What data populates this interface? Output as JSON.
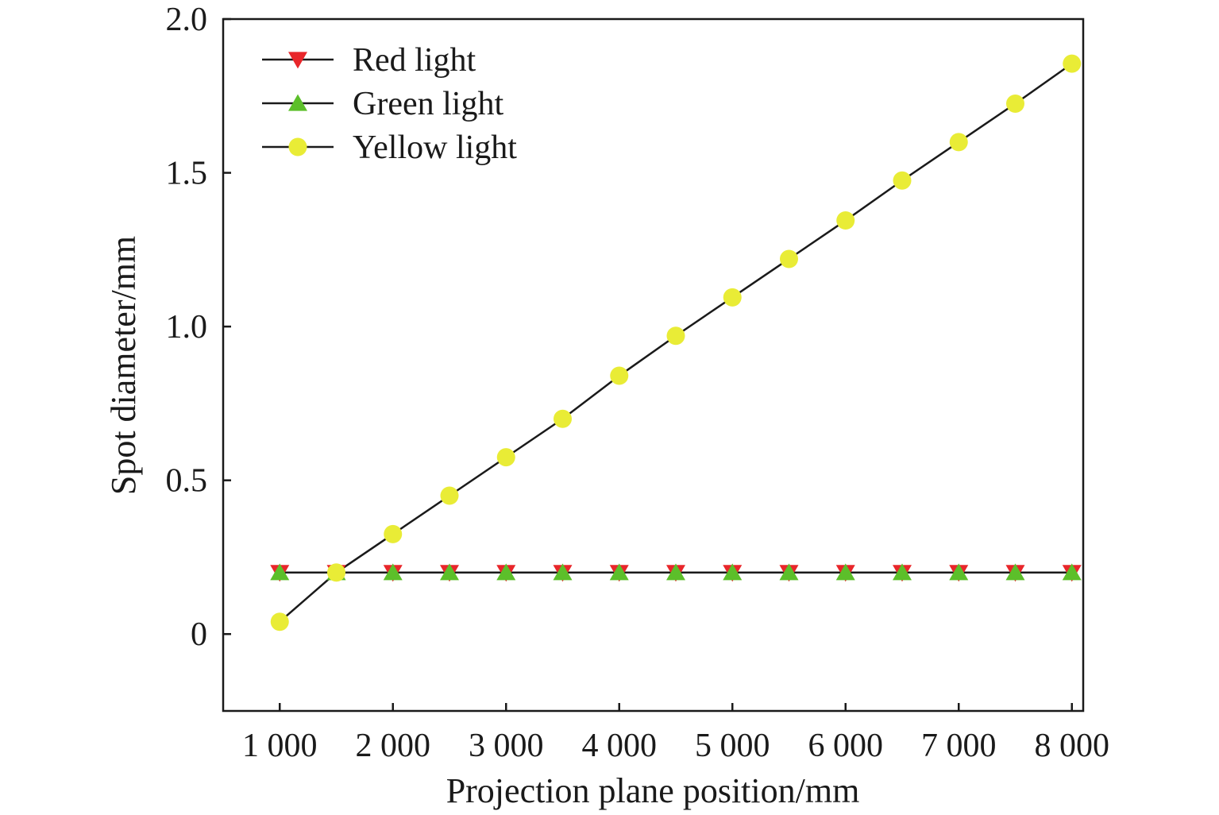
{
  "chart_data": {
    "type": "line",
    "xlabel": "Projection plane position/mm",
    "ylabel": "Spot diameter/mm",
    "xlim": [
      500,
      8100
    ],
    "ylim": [
      -0.25,
      2.0
    ],
    "x_ticks": [
      1000,
      2000,
      3000,
      4000,
      5000,
      6000,
      7000,
      8000
    ],
    "x_tick_labels": [
      "1 000",
      "2 000",
      "3 000",
      "4 000",
      "5 000",
      "6 000",
      "7 000",
      "8 000"
    ],
    "y_ticks": [
      0,
      0.5,
      1.0,
      1.5,
      2.0
    ],
    "y_tick_labels": [
      "0",
      "0.5",
      "1.0",
      "1.5",
      "2.0"
    ],
    "grid": false,
    "legend_position": "top-left",
    "x": [
      1000,
      1500,
      2000,
      2500,
      3000,
      3500,
      4000,
      4500,
      5000,
      5500,
      6000,
      6500,
      7000,
      7500,
      8000
    ],
    "series": [
      {
        "name": "Red light",
        "marker": "triangle-down",
        "color": "#e8262a",
        "values": [
          0.2,
          0.2,
          0.2,
          0.2,
          0.2,
          0.2,
          0.2,
          0.2,
          0.2,
          0.2,
          0.2,
          0.2,
          0.2,
          0.2,
          0.2
        ]
      },
      {
        "name": "Green light",
        "marker": "triangle-up",
        "color": "#5cbf2a",
        "values": [
          0.2,
          0.2,
          0.2,
          0.2,
          0.2,
          0.2,
          0.2,
          0.2,
          0.2,
          0.2,
          0.2,
          0.2,
          0.2,
          0.2,
          0.2
        ]
      },
      {
        "name": "Yellow light",
        "marker": "circle",
        "color": "#e9ec36",
        "values": [
          0.04,
          0.2,
          0.325,
          0.45,
          0.575,
          0.7,
          0.84,
          0.97,
          1.095,
          1.22,
          1.345,
          1.475,
          1.6,
          1.725,
          1.855
        ]
      }
    ],
    "line_color": "#1a1a1a"
  }
}
